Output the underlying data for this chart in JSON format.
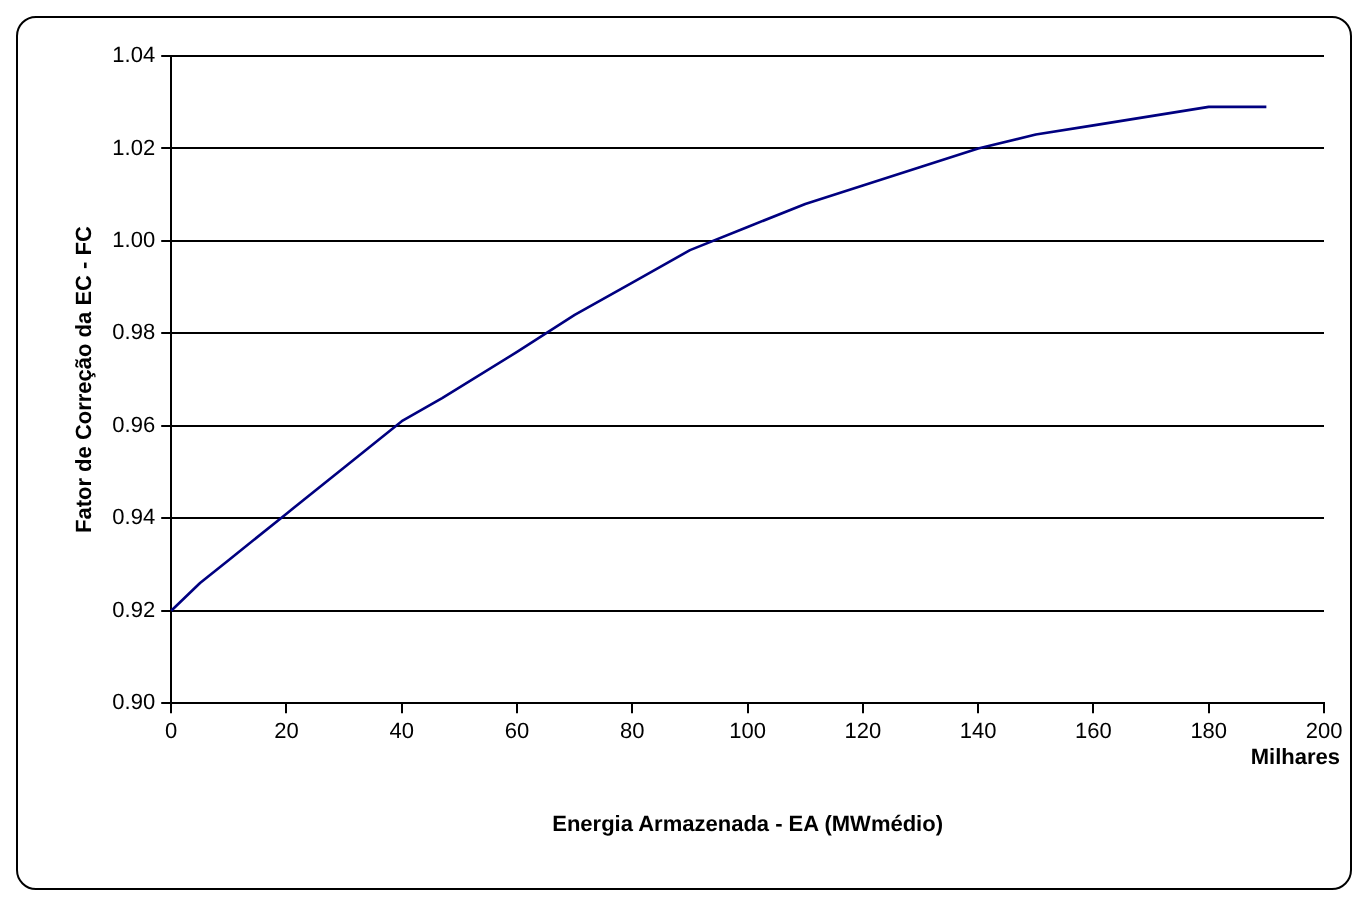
{
  "chart_data": {
    "type": "line",
    "xlabel": "Energia Armazenada - EA (MWmédio)",
    "ylabel": "Fator de Correção da EC - FC",
    "annotations": [
      "Milhares"
    ],
    "x": [
      0,
      5,
      10,
      20,
      30,
      40,
      47,
      60,
      70,
      80,
      90,
      100,
      110,
      120,
      130,
      140,
      150,
      160,
      170,
      180,
      190
    ],
    "series": [
      {
        "color": "#000080",
        "values": [
          0.92,
          0.926,
          0.931,
          0.941,
          0.951,
          0.961,
          0.966,
          0.976,
          0.984,
          0.991,
          0.998,
          1.003,
          1.008,
          1.012,
          1.016,
          1.02,
          1.023,
          1.025,
          1.027,
          1.029,
          1.029
        ]
      }
    ],
    "xlim": [
      0,
      200
    ],
    "xticks": [
      0,
      20,
      40,
      60,
      80,
      100,
      120,
      140,
      160,
      180,
      200
    ],
    "ylim": [
      0.9,
      1.04
    ],
    "yticks": [
      {
        "value": 0.9,
        "label": "0.90"
      },
      {
        "value": 0.92,
        "label": "0.92"
      },
      {
        "value": 0.94,
        "label": "0.94"
      },
      {
        "value": 0.96,
        "label": "0.96"
      },
      {
        "value": 0.98,
        "label": "0.98"
      },
      {
        "value": 1.0,
        "label": "1.00"
      },
      {
        "value": 1.02,
        "label": "1.02"
      },
      {
        "value": 1.04,
        "label": "1.04"
      }
    ],
    "grid": "y",
    "legend": false,
    "marker": "none",
    "line_style": "solid"
  }
}
